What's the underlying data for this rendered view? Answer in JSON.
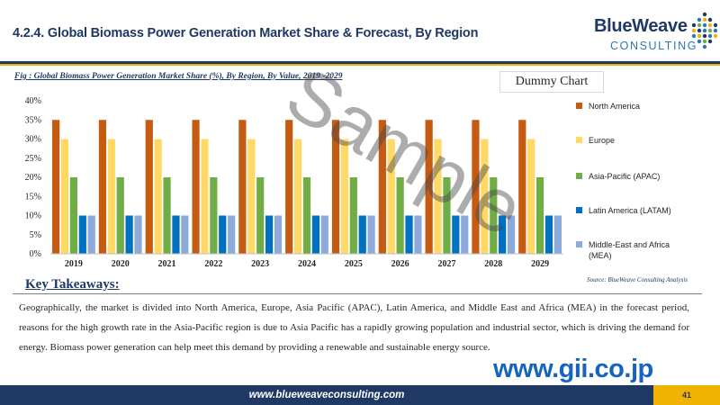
{
  "header": {
    "title": "4.2.4. Global Biomass Power Generation Market Share & Forecast, By Region",
    "logo_main": "BlueWeave",
    "logo_sub": "CONSULTING"
  },
  "figure": {
    "caption": "Fig : Global Biomass Power Generation Market Share (%), By Region, By Value, 2019 -2029",
    "dummy_label": "Dummy Chart",
    "source": "Source: BlueWeave Consulting Analysis"
  },
  "chart_data": {
    "type": "bar",
    "categories": [
      "2019",
      "2020",
      "2021",
      "2022",
      "2023",
      "2024",
      "2025",
      "2026",
      "2027",
      "2028",
      "2029"
    ],
    "y_ticks": [
      "0%",
      "5%",
      "10%",
      "15%",
      "20%",
      "25%",
      "30%",
      "35%",
      "40%"
    ],
    "ylim": [
      0,
      40
    ],
    "grid": false,
    "legend_position": "right",
    "series": [
      {
        "name": "North America",
        "color": "#c55a11",
        "values": [
          35,
          35,
          35,
          35,
          35,
          35,
          35,
          35,
          35,
          35,
          35
        ]
      },
      {
        "name": "Europe",
        "color": "#ffd966",
        "values": [
          30,
          30,
          30,
          30,
          30,
          30,
          30,
          30,
          30,
          30,
          30
        ]
      },
      {
        "name": "Asia-Pacific (APAC)",
        "color": "#70ad47",
        "values": [
          20,
          20,
          20,
          20,
          20,
          20,
          20,
          20,
          20,
          20,
          20
        ]
      },
      {
        "name": "Latin America (LATAM)",
        "color": "#0070c0",
        "values": [
          10,
          10,
          10,
          10,
          10,
          10,
          10,
          10,
          10,
          10,
          10
        ]
      },
      {
        "name": "Middle-East and Africa (MEA)",
        "color": "#8eaadb",
        "values": [
          10,
          10,
          10,
          10,
          10,
          10,
          10,
          10,
          10,
          10,
          10
        ]
      }
    ]
  },
  "takeaways": {
    "title": "Key Takeaways:",
    "text": "Geographically, the market is divided into North America, Europe, Asia Pacific (APAC), Latin America, and Middle East and Africa (MEA) in the forecast period, reasons for the high growth rate in the Asia-Pacific region is due to  Asia Pacific has a rapidly growing population and industrial sector, which is driving the demand for energy. Biomass power generation can help meet this demand by providing a renewable and sustainable energy source."
  },
  "footer": {
    "url": "www.blueweaveconsulting.com",
    "page": "41"
  },
  "overlays": {
    "watermark": "Sample",
    "corner_mark": "www.gii.co.jp"
  }
}
